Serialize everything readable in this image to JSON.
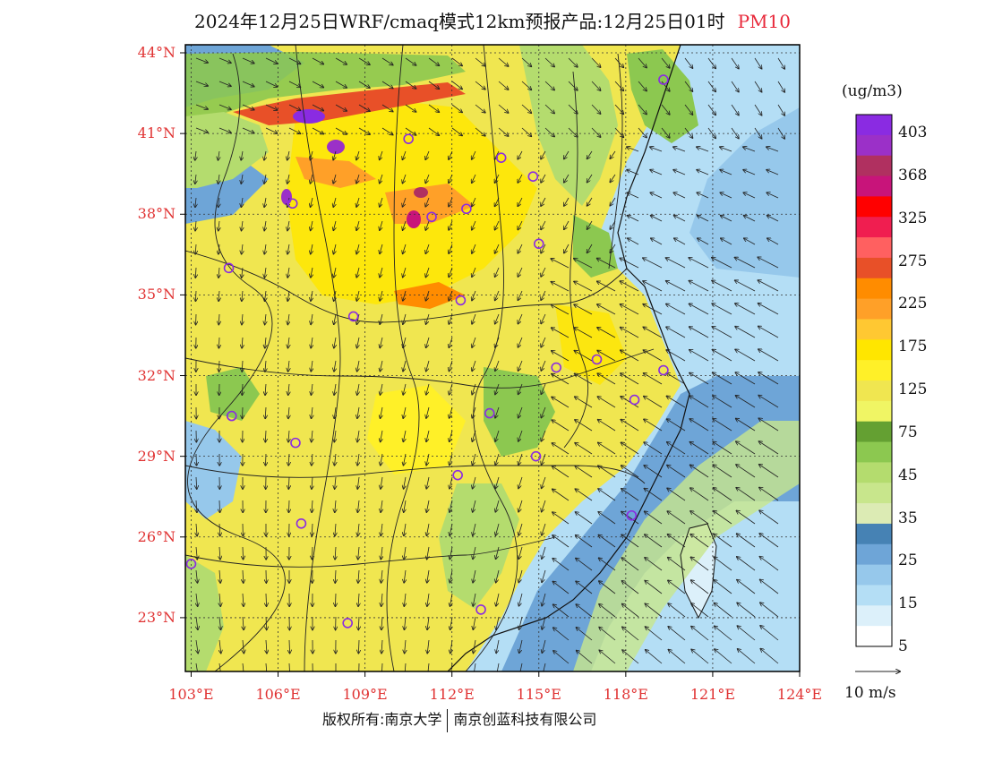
{
  "title": {
    "main": "2024年12月25日WRF/cmaq模式12km预报产品:12月25日01时",
    "variable": "PM10"
  },
  "axes": {
    "lat_labels": [
      "44°N",
      "41°N",
      "38°N",
      "35°N",
      "32°N",
      "29°N",
      "26°N",
      "23°N"
    ],
    "lat_values": [
      44,
      41,
      38,
      35,
      32,
      29,
      26,
      23
    ],
    "lon_labels": [
      "103°E",
      "106°E",
      "109°E",
      "112°E",
      "115°E",
      "118°E",
      "121°E",
      "124°E"
    ],
    "lon_values": [
      103,
      106,
      109,
      112,
      115,
      118,
      121,
      124
    ],
    "lon_range": [
      102.8,
      124
    ],
    "lat_range": [
      21,
      44.3
    ]
  },
  "legend": {
    "unit": "(ug/m3)",
    "labels": [
      "403",
      "368",
      "325",
      "275",
      "225",
      "175",
      "125",
      "75",
      "45",
      "35",
      "25",
      "15",
      "5"
    ],
    "colors": [
      "#8a2be2",
      "#9b30c8",
      "#b03060",
      "#c8147a",
      "#ff0000",
      "#f01e50",
      "#ff6060",
      "#e85028",
      "#ff8c00",
      "#ffa028",
      "#ffc832",
      "#ffe600",
      "#fff028",
      "#f0e650",
      "#f0f564",
      "#64a032",
      "#8cc850",
      "#b4dc6e",
      "#c8e68c",
      "#dcebb4",
      "#4682b4",
      "#6ea5d7",
      "#96c8eb",
      "#b4def5",
      "#dcf0fa",
      "#ffffff"
    ]
  },
  "wind_reference": "10 m/s",
  "copyright": {
    "left": "版权所有:南京大学",
    "right": "南京创蓝科技有限公司"
  },
  "stations": [
    {
      "lon": 119.3,
      "lat": 43.0
    },
    {
      "lon": 110.5,
      "lat": 40.8
    },
    {
      "lon": 113.7,
      "lat": 40.1
    },
    {
      "lon": 114.8,
      "lat": 39.4
    },
    {
      "lon": 106.5,
      "lat": 38.4
    },
    {
      "lon": 112.5,
      "lat": 38.2
    },
    {
      "lon": 111.3,
      "lat": 37.9
    },
    {
      "lon": 115.0,
      "lat": 36.9
    },
    {
      "lon": 104.3,
      "lat": 36.0
    },
    {
      "lon": 112.3,
      "lat": 34.8
    },
    {
      "lon": 108.6,
      "lat": 34.2
    },
    {
      "lon": 117.0,
      "lat": 32.6
    },
    {
      "lon": 115.6,
      "lat": 32.3
    },
    {
      "lon": 119.3,
      "lat": 32.2
    },
    {
      "lon": 118.3,
      "lat": 31.1
    },
    {
      "lon": 113.3,
      "lat": 30.6
    },
    {
      "lon": 104.4,
      "lat": 30.5
    },
    {
      "lon": 106.6,
      "lat": 29.5
    },
    {
      "lon": 114.9,
      "lat": 29.0
    },
    {
      "lon": 112.2,
      "lat": 28.3
    },
    {
      "lon": 118.2,
      "lat": 26.8
    },
    {
      "lon": 106.8,
      "lat": 26.5
    },
    {
      "lon": 103.0,
      "lat": 25.0
    },
    {
      "lon": 113.0,
      "lat": 23.3
    },
    {
      "lon": 108.4,
      "lat": 22.8
    }
  ]
}
